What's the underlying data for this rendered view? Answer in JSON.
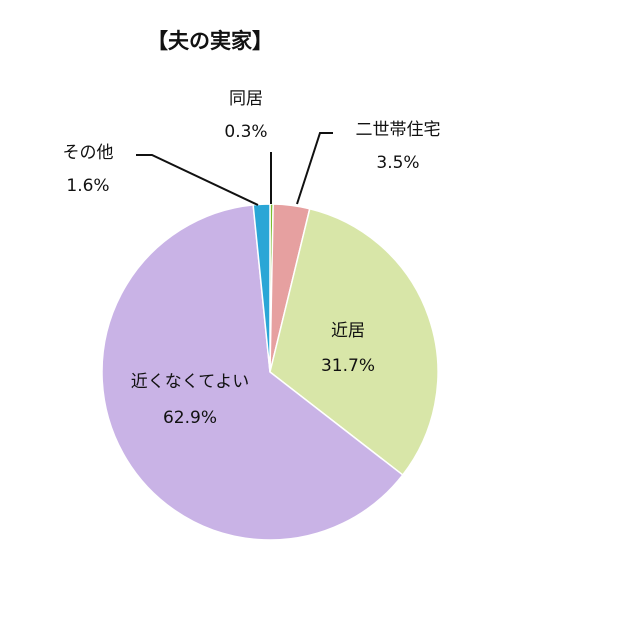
{
  "chart_data": {
    "type": "pie",
    "title": "【夫の実家】",
    "start_angle_deg": 0,
    "direction": "clockwise",
    "slices": [
      {
        "label": "同居",
        "value": 0.3,
        "value_label": "0.3%",
        "color": "#7bbd2f"
      },
      {
        "label": "二世帯住宅",
        "value": 3.5,
        "value_label": "3.5%",
        "color": "#e6a0a0"
      },
      {
        "label": "近居",
        "value": 31.7,
        "value_label": "31.7%",
        "color": "#d8e6a8"
      },
      {
        "label": "近くなくてよい",
        "value": 62.9,
        "value_label": "62.9%",
        "color": "#c9b3e6"
      },
      {
        "label": "その他",
        "value": 1.6,
        "value_label": "1.6%",
        "color": "#2aa6d6"
      }
    ]
  }
}
